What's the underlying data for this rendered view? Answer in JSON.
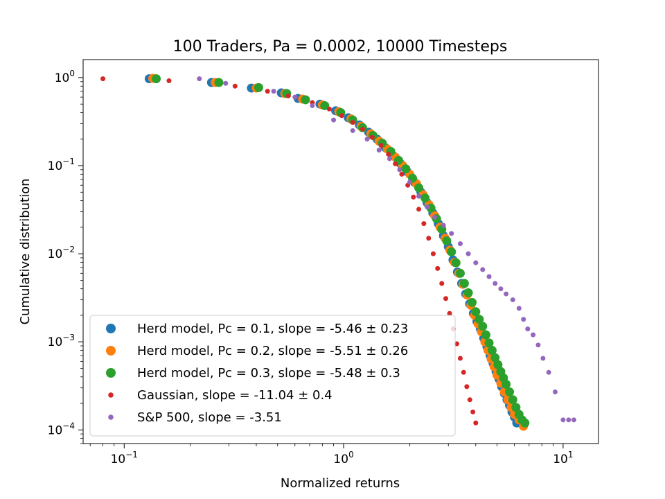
{
  "chart_data": {
    "type": "scatter",
    "title": "100 Traders, Pa = 0.0002, 10000 Timesteps",
    "xlabel": "Normalized returns",
    "ylabel": "Cumulative distribution",
    "xscale": "log",
    "yscale": "log",
    "xlim": [
      0.065,
      14.5
    ],
    "ylim": [
      7e-05,
      1.6
    ],
    "x_ticks": [
      {
        "base": "10",
        "exp": "−1",
        "value": 0.1
      },
      {
        "base": "10",
        "exp": "0",
        "value": 1
      },
      {
        "base": "10",
        "exp": "1",
        "value": 10
      }
    ],
    "y_ticks": [
      {
        "base": "10",
        "exp": "0",
        "value": 1
      },
      {
        "base": "10",
        "exp": "−1",
        "value": 0.1
      },
      {
        "base": "10",
        "exp": "−2",
        "value": 0.01
      },
      {
        "base": "10",
        "exp": "−3",
        "value": 0.001
      },
      {
        "base": "10",
        "exp": "−4",
        "value": 0.0001
      }
    ],
    "legend_position": "lower-left",
    "series": [
      {
        "name": "Herd model, Pc = 0.1, slope = -5.46 ± 0.23",
        "color": "#1f77b4",
        "marker": "large",
        "points": [
          [
            0.13,
            0.97
          ],
          [
            0.25,
            0.88
          ],
          [
            0.38,
            0.76
          ],
          [
            0.52,
            0.67
          ],
          [
            0.62,
            0.58
          ],
          [
            0.78,
            0.5
          ],
          [
            0.92,
            0.42
          ],
          [
            1.05,
            0.35
          ],
          [
            1.18,
            0.29
          ],
          [
            1.3,
            0.24
          ],
          [
            1.42,
            0.2
          ],
          [
            1.55,
            0.16
          ],
          [
            1.68,
            0.13
          ],
          [
            1.82,
            0.105
          ],
          [
            1.95,
            0.085
          ],
          [
            2.1,
            0.065
          ],
          [
            2.25,
            0.05
          ],
          [
            2.4,
            0.038
          ],
          [
            2.55,
            0.029
          ],
          [
            2.7,
            0.022
          ],
          [
            2.85,
            0.016
          ],
          [
            3.0,
            0.012
          ],
          [
            3.15,
            0.0085
          ],
          [
            3.3,
            0.0062
          ],
          [
            3.45,
            0.0046
          ],
          [
            3.6,
            0.0035
          ],
          [
            3.75,
            0.0027
          ],
          [
            3.9,
            0.0021
          ],
          [
            4.05,
            0.0017
          ],
          [
            4.2,
            0.0014
          ],
          [
            4.35,
            0.0011
          ],
          [
            4.5,
            0.00088
          ],
          [
            4.65,
            0.0007
          ],
          [
            4.8,
            0.00057
          ],
          [
            4.95,
            0.00046
          ],
          [
            5.1,
            0.00038
          ],
          [
            5.25,
            0.00031
          ],
          [
            5.4,
            0.00026
          ],
          [
            5.55,
            0.00022
          ],
          [
            5.7,
            0.00019
          ],
          [
            5.85,
            0.00016
          ],
          [
            6.0,
            0.00014
          ],
          [
            6.15,
            0.00012
          ]
        ]
      },
      {
        "name": "Herd model, Pc = 0.2, slope = -5.51 ± 0.26",
        "color": "#ff7f0e",
        "marker": "large",
        "points": [
          [
            0.135,
            0.98
          ],
          [
            0.26,
            0.88
          ],
          [
            0.4,
            0.76
          ],
          [
            0.54,
            0.66
          ],
          [
            0.65,
            0.57
          ],
          [
            0.8,
            0.49
          ],
          [
            0.95,
            0.41
          ],
          [
            1.08,
            0.34
          ],
          [
            1.2,
            0.28
          ],
          [
            1.33,
            0.23
          ],
          [
            1.45,
            0.19
          ],
          [
            1.58,
            0.155
          ],
          [
            1.72,
            0.125
          ],
          [
            1.86,
            0.1
          ],
          [
            2.0,
            0.08
          ],
          [
            2.15,
            0.062
          ],
          [
            2.3,
            0.047
          ],
          [
            2.45,
            0.036
          ],
          [
            2.6,
            0.027
          ],
          [
            2.75,
            0.02
          ],
          [
            2.9,
            0.015
          ],
          [
            3.05,
            0.011
          ],
          [
            3.2,
            0.008
          ],
          [
            3.35,
            0.006
          ],
          [
            3.5,
            0.0045
          ],
          [
            3.65,
            0.0034
          ],
          [
            3.8,
            0.0026
          ],
          [
            3.95,
            0.002
          ],
          [
            4.1,
            0.0016
          ],
          [
            4.25,
            0.0013
          ],
          [
            4.4,
            0.001
          ],
          [
            4.55,
            0.0008
          ],
          [
            4.7,
            0.00064
          ],
          [
            4.85,
            0.00052
          ],
          [
            5.0,
            0.00042
          ],
          [
            5.2,
            0.00034
          ],
          [
            5.4,
            0.00027
          ],
          [
            5.6,
            0.00022
          ],
          [
            5.8,
            0.00018
          ],
          [
            6.0,
            0.00015
          ],
          [
            6.3,
            0.00013
          ],
          [
            6.6,
            0.00011
          ]
        ]
      },
      {
        "name": "Herd model, Pc = 0.3, slope = -5.48 ± 0.3",
        "color": "#2ca02c",
        "marker": "large",
        "points": [
          [
            0.14,
            0.97
          ],
          [
            0.27,
            0.88
          ],
          [
            0.41,
            0.77
          ],
          [
            0.55,
            0.66
          ],
          [
            0.67,
            0.56
          ],
          [
            0.82,
            0.48
          ],
          [
            0.97,
            0.4
          ],
          [
            1.1,
            0.33
          ],
          [
            1.22,
            0.27
          ],
          [
            1.36,
            0.22
          ],
          [
            1.5,
            0.18
          ],
          [
            1.64,
            0.145
          ],
          [
            1.78,
            0.115
          ],
          [
            1.92,
            0.092
          ],
          [
            2.06,
            0.072
          ],
          [
            2.2,
            0.056
          ],
          [
            2.35,
            0.043
          ],
          [
            2.5,
            0.033
          ],
          [
            2.65,
            0.025
          ],
          [
            2.8,
            0.019
          ],
          [
            2.95,
            0.014
          ],
          [
            3.1,
            0.0105
          ],
          [
            3.25,
            0.0079
          ],
          [
            3.4,
            0.006
          ],
          [
            3.55,
            0.0046
          ],
          [
            3.7,
            0.0036
          ],
          [
            3.85,
            0.0028
          ],
          [
            4.0,
            0.0022
          ],
          [
            4.15,
            0.0018
          ],
          [
            4.3,
            0.0015
          ],
          [
            4.45,
            0.0012
          ],
          [
            4.6,
            0.00097
          ],
          [
            4.75,
            0.0008
          ],
          [
            4.9,
            0.00066
          ],
          [
            5.05,
            0.00055
          ],
          [
            5.2,
            0.00046
          ],
          [
            5.35,
            0.00039
          ],
          [
            5.5,
            0.00033
          ],
          [
            5.7,
            0.00027
          ],
          [
            5.9,
            0.00022
          ],
          [
            6.1,
            0.00018
          ],
          [
            6.3,
            0.00015
          ],
          [
            6.5,
            0.00013
          ],
          [
            6.7,
            0.00012
          ]
        ]
      },
      {
        "name": "Gaussian, slope = -11.04 ± 0.4",
        "color": "#d62728",
        "marker": "small",
        "points": [
          [
            0.08,
            0.97
          ],
          [
            0.16,
            0.92
          ],
          [
            0.32,
            0.8
          ],
          [
            0.45,
            0.7
          ],
          [
            0.56,
            0.62
          ],
          [
            0.72,
            0.52
          ],
          [
            0.86,
            0.44
          ],
          [
            0.98,
            0.37
          ],
          [
            1.1,
            0.31
          ],
          [
            1.22,
            0.26
          ],
          [
            1.35,
            0.21
          ],
          [
            1.48,
            0.17
          ],
          [
            1.6,
            0.135
          ],
          [
            1.72,
            0.105
          ],
          [
            1.84,
            0.08
          ],
          [
            1.96,
            0.06
          ],
          [
            2.08,
            0.044
          ],
          [
            2.2,
            0.032
          ],
          [
            2.32,
            0.022
          ],
          [
            2.44,
            0.015
          ],
          [
            2.56,
            0.01
          ],
          [
            2.68,
            0.0068
          ],
          [
            2.8,
            0.0046
          ],
          [
            2.92,
            0.0031
          ],
          [
            3.04,
            0.0021
          ],
          [
            3.16,
            0.0014
          ],
          [
            3.28,
            0.00095
          ],
          [
            3.4,
            0.00065
          ],
          [
            3.52,
            0.00045
          ],
          [
            3.64,
            0.00031
          ],
          [
            3.76,
            0.00022
          ],
          [
            3.88,
            0.00016
          ],
          [
            4.0,
            0.00012
          ]
        ]
      },
      {
        "name": "S&P 500, slope = -3.51",
        "color": "#9467bd",
        "marker": "small",
        "points": [
          [
            0.22,
            0.97
          ],
          [
            0.29,
            0.86
          ],
          [
            0.48,
            0.7
          ],
          [
            0.6,
            0.6
          ],
          [
            0.72,
            0.48
          ],
          [
            0.9,
            0.33
          ],
          [
            1.1,
            0.25
          ],
          [
            1.28,
            0.2
          ],
          [
            1.45,
            0.15
          ],
          [
            1.62,
            0.12
          ],
          [
            1.8,
            0.09
          ],
          [
            2.0,
            0.065
          ],
          [
            2.2,
            0.045
          ],
          [
            2.4,
            0.034
          ],
          [
            2.6,
            0.026
          ],
          [
            2.85,
            0.021
          ],
          [
            3.1,
            0.017
          ],
          [
            3.4,
            0.013
          ],
          [
            3.7,
            0.01
          ],
          [
            4.0,
            0.0079
          ],
          [
            4.3,
            0.0066
          ],
          [
            4.6,
            0.0055
          ],
          [
            4.9,
            0.0046
          ],
          [
            5.2,
            0.004
          ],
          [
            5.5,
            0.0035
          ],
          [
            5.9,
            0.003
          ],
          [
            6.3,
            0.0024
          ],
          [
            6.6,
            0.0018
          ],
          [
            6.9,
            0.0014
          ],
          [
            7.3,
            0.0012
          ],
          [
            7.7,
            0.00092
          ],
          [
            8.1,
            0.00065
          ],
          [
            8.6,
            0.00045
          ],
          [
            9.2,
            0.00027
          ],
          [
            10.0,
            0.00013
          ],
          [
            10.6,
            0.00013
          ],
          [
            11.2,
            0.00013
          ]
        ]
      }
    ]
  }
}
